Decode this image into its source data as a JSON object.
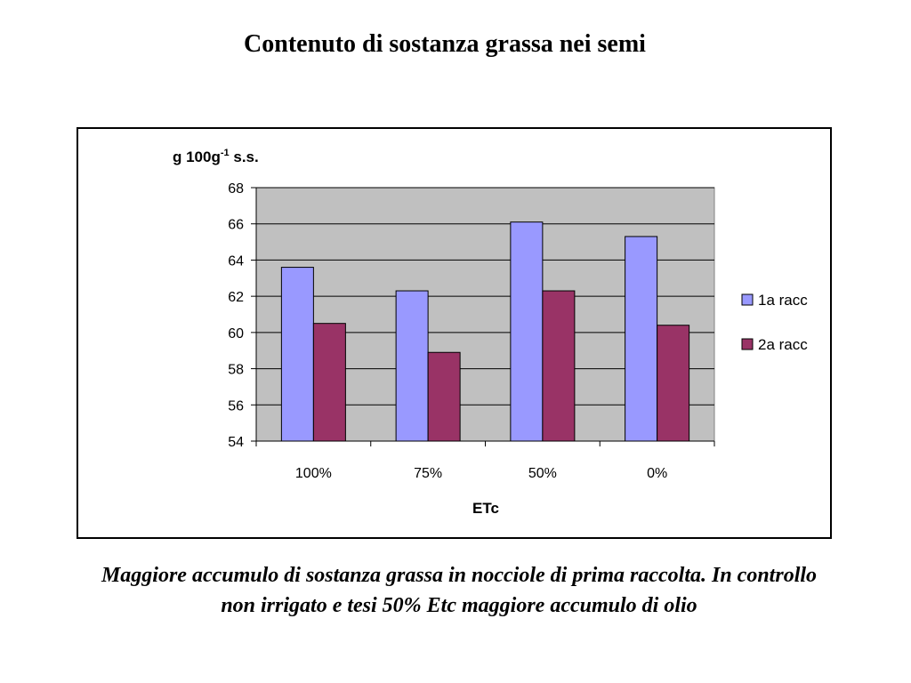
{
  "slide": {
    "title": "Contenuto di sostanza grassa nei semi",
    "caption": "Maggiore accumulo di sostanza grassa in nocciole di prima raccolta. In controllo non irrigato e tesi 50% Etc maggiore accumulo di olio"
  },
  "chart_data": {
    "type": "bar",
    "categories": [
      "100%",
      "75%",
      "50%",
      "0%"
    ],
    "series": [
      {
        "name": "1a racc",
        "values": [
          63.6,
          62.3,
          66.1,
          65.3
        ],
        "color": "#9999ff"
      },
      {
        "name": "2a racc",
        "values": [
          60.5,
          58.9,
          62.3,
          60.4
        ],
        "color": "#993366"
      }
    ],
    "ylabel_main": "g 100g",
    "ylabel_sup": "-1",
    "ylabel_tail": " s.s.",
    "xlabel": "ETc",
    "ylim": [
      54,
      68
    ],
    "yticks": [
      54,
      56,
      58,
      60,
      62,
      64,
      66,
      68
    ],
    "plot_background": "#c0c0c0",
    "grid": true,
    "legend_position": "right"
  }
}
